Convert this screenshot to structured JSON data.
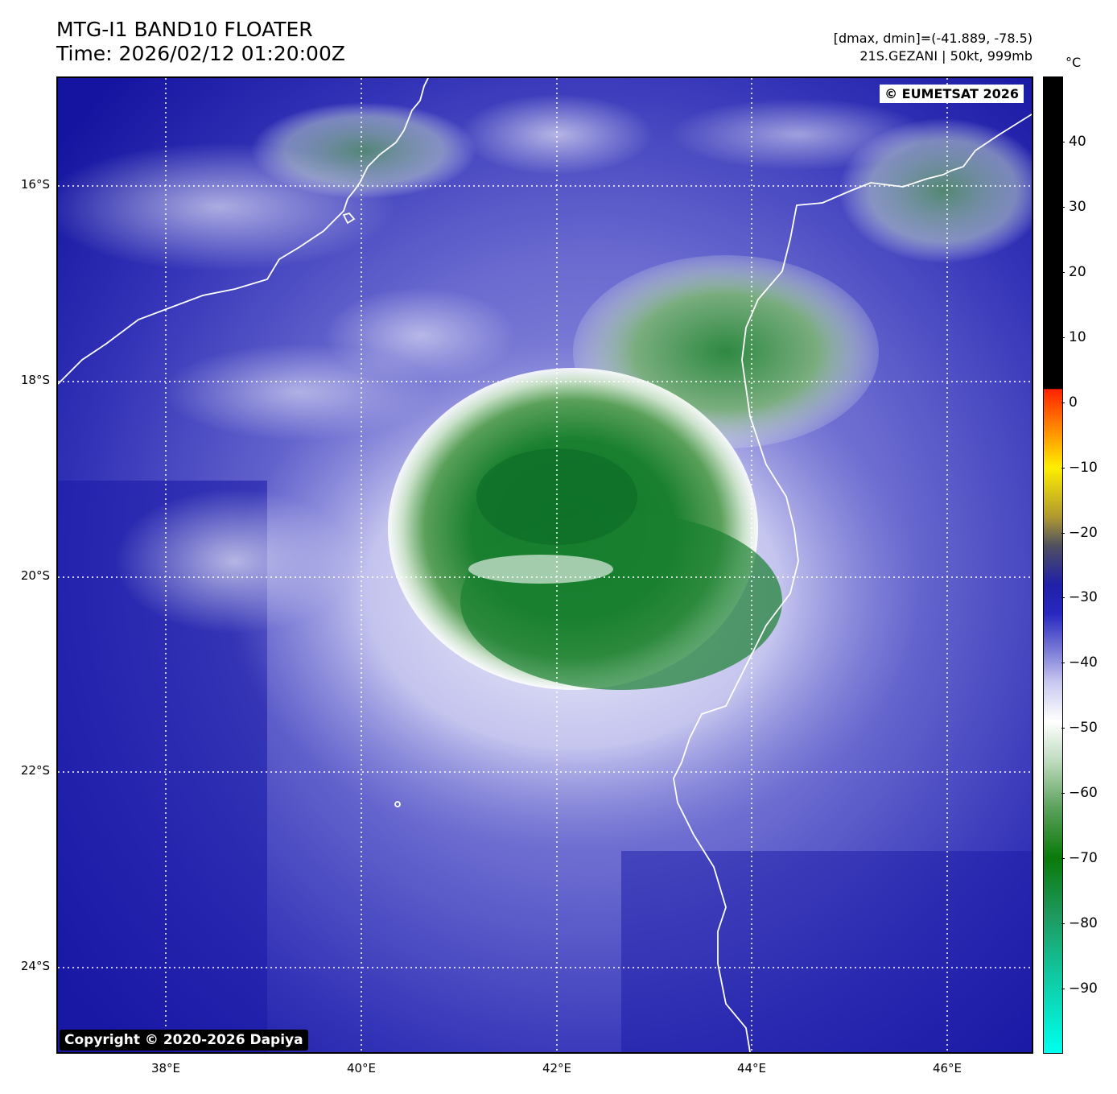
{
  "title": {
    "line1": "MTG-I1 BAND10 FLOATER",
    "line2": "Time: 2026/02/12 01:20:00Z"
  },
  "info": {
    "line1": "[dmax, dmin]=(-41.889, -78.5)",
    "line2": "21S.GEZANI | 50kt, 999mb"
  },
  "map": {
    "lat_labels": [
      "16°S",
      "18°S",
      "20°S",
      "22°S",
      "24°S"
    ],
    "lat_values": [
      -16,
      -18,
      -20,
      -22,
      -24
    ],
    "lon_labels": [
      "38°E",
      "40°E",
      "42°E",
      "44°E",
      "46°E"
    ],
    "lon_values": [
      38,
      40,
      42,
      44,
      46
    ],
    "extent": {
      "lon_min": 36.9,
      "lon_max": 46.9,
      "lat_max": -14.9,
      "lat_min": -24.9
    },
    "storm_center": {
      "lon": 42.0,
      "lat": -19.8
    },
    "copyright_top": "© EUMETSAT 2026",
    "copyright_bottom": "Copyright © 2020-2026 Dapiya",
    "colors": {
      "cold_top": "#0a7a0a",
      "cirrus": "#ffffff",
      "mid_cloud": "#8a8adc",
      "ocean_clear": "#1a1aa8",
      "coastline": "#ffffff",
      "grid": "#ffffff"
    }
  },
  "colorbar": {
    "unit": "°C",
    "ticks": [
      "40",
      "30",
      "20",
      "10",
      "0",
      "−10",
      "−20",
      "−30",
      "−40",
      "−50",
      "−60",
      "−70",
      "−80",
      "−90"
    ],
    "tick_values": [
      40,
      30,
      20,
      10,
      0,
      -10,
      -20,
      -30,
      -40,
      -50,
      -60,
      -70,
      -80,
      -90
    ],
    "range": [
      -100,
      50
    ]
  }
}
